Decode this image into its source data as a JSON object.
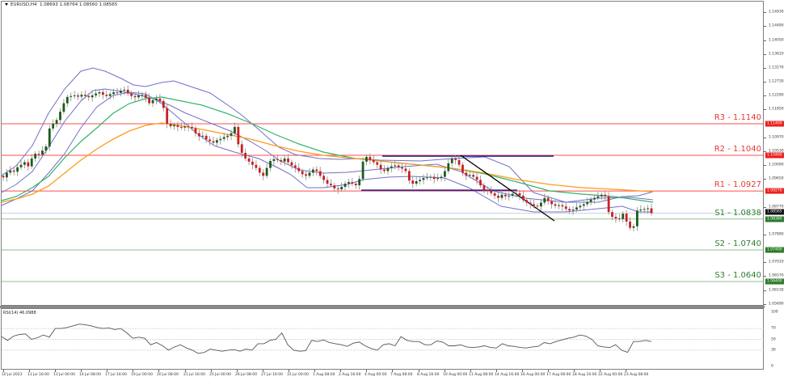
{
  "header": {
    "symbol": "EURUSD,H4",
    "ohlc": "1.08693 1.08764 1.08560 1.08565"
  },
  "rsi_header": "RSI(14) 46.0988",
  "colors": {
    "resistance": "#ff4d4d",
    "support": "#8fbf8f",
    "support_text": "#2e7d32",
    "resistance_text": "#e53935",
    "bull_candle": "#1a5c1a",
    "bear_candle": "#cc1f1f",
    "bollinger": "#7070c8",
    "ma_green": "#33b36b",
    "ma_orange": "#ff9a1a",
    "channel": "#1a1a8c",
    "trendline": "#000000",
    "rsi_line": "#555555"
  },
  "levels": [
    {
      "name": "R3",
      "label": "R3 - 1.1140",
      "price": 1.114,
      "tag": "1.11400",
      "type": "resistance"
    },
    {
      "name": "R2",
      "label": "R2 - 1.1040",
      "price": 1.104,
      "tag": "1.10400",
      "type": "resistance"
    },
    {
      "name": "R1",
      "label": "R1 - 1.0927",
      "price": 1.0927,
      "tag": "1.09270",
      "type": "resistance"
    },
    {
      "name": "S1",
      "label": "S1 - 1.0838",
      "price": 1.0838,
      "tag": "1.08380",
      "type": "support"
    },
    {
      "name": "S2",
      "label": "S2 - 1.0740",
      "price": 1.074,
      "tag": "1.07400",
      "type": "support"
    },
    {
      "name": "S3",
      "label": "S3 - 1.0640",
      "price": 1.064,
      "tag": "1.06400",
      "type": "support"
    }
  ],
  "current_price_tag": "1.08565",
  "yaxis_ticks": [
    "1.14930",
    "1.14490",
    "1.14050",
    "1.13610",
    "1.13170",
    "1.12730",
    "1.12290",
    "1.11850",
    "1.10970",
    "1.10530",
    "1.10090",
    "1.09650",
    "1.08770",
    "1.07890",
    "1.07010",
    "1.06570",
    "1.06130",
    "1.05690"
  ],
  "rsi_ticks": [
    "100",
    "70",
    "50",
    "30",
    "0"
  ],
  "xaxis_ticks": [
    "10 Jul 2023",
    "11 Jul 16:00",
    "13 Jul 00:00",
    "14 Jul 08:00",
    "17 Jul 16:00",
    "19 Jul 00:00",
    "20 Jul 08:00",
    "21 Jul 16:00",
    "25 Jul 00:00",
    "26 Jul 08:00",
    "27 Jul 16:00",
    "31 Jul 00:00",
    "1 Aug 08:00",
    "2 Aug 16:00",
    "4 Aug 00:00",
    "7 Aug 08:00",
    "8 Aug 16:00",
    "10 Aug 00:00",
    "11 Aug 08:00",
    "14 Aug 16:00",
    "16 Aug 00:00",
    "17 Aug 08:00",
    "18 Aug 16:00",
    "22 Aug 00:00",
    "23 Aug 08:00"
  ],
  "chart_data": {
    "type": "candlestick",
    "title": "EURUSD,H4",
    "ohlc_last": {
      "open": 1.08693,
      "high": 1.08764,
      "low": 1.0856,
      "close": 1.08565
    },
    "ylim": [
      1.055,
      1.151
    ],
    "x_range": [
      "10 Jul 2023",
      "23 Aug 2023 08:00"
    ],
    "approx_close_path": [
      {
        "x": "10 Jul 2023",
        "close": 1.0985
      },
      {
        "x": "11 Jul 16:00",
        "close": 1.101
      },
      {
        "x": "13 Jul 00:00",
        "close": 1.1125
      },
      {
        "x": "14 Jul 08:00",
        "close": 1.1225
      },
      {
        "x": "17 Jul 16:00",
        "close": 1.1235
      },
      {
        "x": "19 Jul 00:00",
        "close": 1.1205
      },
      {
        "x": "20 Jul 08:00",
        "close": 1.113
      },
      {
        "x": "21 Jul 16:00",
        "close": 1.1125
      },
      {
        "x": "25 Jul 00:00",
        "close": 1.1065
      },
      {
        "x": "26 Jul 08:00",
        "close": 1.1085
      },
      {
        "x": "27 Jul 16:00",
        "close": 1.0975
      },
      {
        "x": "31 Jul 00:00",
        "close": 1.1
      },
      {
        "x": "1 Aug 08:00",
        "close": 1.0965
      },
      {
        "x": "2 Aug 16:00",
        "close": 1.0935
      },
      {
        "x": "4 Aug 00:00",
        "close": 1.101
      },
      {
        "x": "7 Aug 08:00",
        "close": 1.1005
      },
      {
        "x": "8 Aug 16:00",
        "close": 1.096
      },
      {
        "x": "10 Aug 00:00",
        "close": 1.1015
      },
      {
        "x": "11 Aug 08:00",
        "close": 1.095
      },
      {
        "x": "14 Aug 16:00",
        "close": 1.0905
      },
      {
        "x": "16 Aug 00:00",
        "close": 1.089
      },
      {
        "x": "17 Aug 08:00",
        "close": 1.087
      },
      {
        "x": "18 Aug 16:00",
        "close": 1.0875
      },
      {
        "x": "22 Aug 00:00",
        "close": 1.0845
      },
      {
        "x": "23 Aug 08:00",
        "close": 1.0857
      }
    ],
    "indicators": [
      "Bollinger Bands",
      "Moving Average (green)",
      "Moving Average (orange)"
    ],
    "annotations": [
      {
        "type": "hline",
        "label": "R3 - 1.1140",
        "value": 1.114
      },
      {
        "type": "hline",
        "label": "R2 - 1.1040",
        "value": 1.104
      },
      {
        "type": "hline",
        "label": "R1 - 1.0927",
        "value": 1.0927
      },
      {
        "type": "hline",
        "label": "S1 - 1.0838",
        "value": 1.0838
      },
      {
        "type": "hline",
        "label": "S2 - 1.0740",
        "value": 1.074
      },
      {
        "type": "hline",
        "label": "S3 - 1.0640",
        "value": 1.064
      },
      {
        "type": "channel",
        "from": "4 Aug",
        "to": "11 Aug",
        "top": 1.104,
        "bottom": 1.093
      },
      {
        "type": "trendline",
        "from": {
          "x": "10 Aug 08:00",
          "y": 1.103
        },
        "to": {
          "x": "16 Aug",
          "y": 1.0838
        }
      }
    ],
    "rsi": {
      "title": "RSI(14) 46.0988",
      "period": 14,
      "last": 46.0988,
      "levels": [
        70,
        50,
        30
      ],
      "ylim": [
        0,
        100
      ],
      "approx_values": [
        55,
        48,
        56,
        59,
        60,
        50,
        53,
        58,
        54,
        70,
        70,
        72,
        75,
        78,
        77,
        75,
        72,
        70,
        71,
        68,
        70,
        62,
        52,
        54,
        52,
        40,
        44,
        38,
        30,
        36,
        40,
        34,
        30,
        24,
        26,
        32,
        30,
        28,
        30,
        31,
        28,
        32,
        30,
        42,
        42,
        48,
        50,
        62,
        40,
        30,
        28,
        29,
        48,
        46,
        49,
        44,
        42,
        40,
        37,
        43,
        45,
        38,
        33,
        30,
        40,
        42,
        38,
        55,
        48,
        46,
        46,
        40,
        40,
        47,
        45,
        38,
        38,
        40,
        36,
        35,
        36,
        38,
        35,
        34,
        42,
        38,
        37,
        35,
        34,
        36,
        37,
        44,
        42,
        46,
        49,
        52,
        54,
        58,
        56,
        50,
        38,
        36,
        35,
        40,
        30,
        26,
        46,
        46,
        48,
        46
      ]
    }
  }
}
